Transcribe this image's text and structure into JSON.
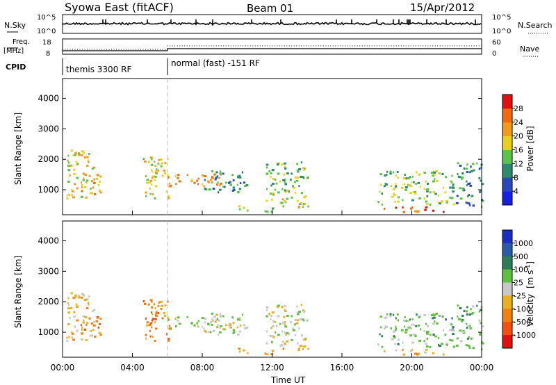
{
  "header": {
    "station": "Syowa East (fitACF)",
    "beam": "Beam 01",
    "date": "15/Apr/2012"
  },
  "panels": {
    "nsky": {
      "label": "N.Sky",
      "ticks_left": [
        "10^5",
        "10^0"
      ],
      "ticks_right": [
        "10^5",
        "10^0"
      ],
      "right_label": "N.Search"
    },
    "freq": {
      "label_line1": "Freq.",
      "label_line2": "[MHz]",
      "ticks_left": [
        "18",
        "8"
      ],
      "ticks_right": [
        "60",
        "0"
      ],
      "right_label": "Nave"
    },
    "cpid": {
      "label": "CPID",
      "segments": [
        {
          "start_hour": 0,
          "text": "themis 3300 RF"
        },
        {
          "start_hour": 6,
          "text": "normal (fast) -151 RF"
        }
      ]
    }
  },
  "x_axis": {
    "label": "Time UT",
    "ticks": [
      "00:00",
      "04:00",
      "08:00",
      "12:00",
      "16:00",
      "20:00",
      "00:00"
    ]
  },
  "y_axis": {
    "label": "Slant Range [km]",
    "ticks": [
      "1000",
      "2000",
      "3000",
      "4000"
    ]
  },
  "power_scale": {
    "label": "Power [dB]",
    "ticks": [
      "4",
      "8",
      "12",
      "16",
      "20",
      "24",
      "28"
    ],
    "colors": [
      "#1520e0",
      "#2a48b8",
      "#2e8a6a",
      "#5cc24a",
      "#e8d020",
      "#f09a20",
      "#f06a10",
      "#e01010"
    ]
  },
  "velocity_scale": {
    "label": "Velocity",
    "unit": "[m s",
    "unit_sup": "-1",
    "unit_close": "]",
    "ticks": [
      "1000",
      "500",
      "100",
      "25",
      "-25",
      "-100",
      "-500",
      "-1000"
    ],
    "colors": [
      "#1a2fc0",
      "#2a5aa8",
      "#2e7a5c",
      "#60c040",
      "#c8c8c8",
      "#e8b020",
      "#f08010",
      "#f05010",
      "#e01010"
    ]
  },
  "chart_data": {
    "type": "heatmap",
    "title": "Syowa East (fitACF)  Beam 01  15/Apr/2012",
    "xlabel": "Time UT",
    "ylabel": "Slant Range [km]",
    "x_range_hours": [
      0,
      24
    ],
    "ylim": [
      180,
      4650
    ],
    "panels": [
      "Power [dB]",
      "Velocity [m s-1]"
    ],
    "echo_regions": [
      {
        "t": [
          0.2,
          1.8
        ],
        "r": [
          700,
          2300
        ],
        "power_db": 14,
        "velocity": "-100"
      },
      {
        "t": [
          1.0,
          2.2
        ],
        "r": [
          800,
          1500
        ],
        "power_db": 20,
        "velocity": "-500"
      },
      {
        "t": [
          4.6,
          6.2
        ],
        "r": [
          700,
          2100
        ],
        "power_db": 16,
        "velocity": "-500"
      },
      {
        "t": [
          6.0,
          9.6
        ],
        "r": [
          1100,
          1500
        ],
        "power_db": 18,
        "velocity": "25"
      },
      {
        "t": [
          8.0,
          10.6
        ],
        "r": [
          900,
          1600
        ],
        "power_db": 8,
        "velocity": "25"
      },
      {
        "t": [
          11.6,
          14.0
        ],
        "r": [
          500,
          1900
        ],
        "power_db": 10,
        "velocity": "25"
      },
      {
        "t": [
          12.4,
          14.2
        ],
        "r": [
          400,
          750
        ],
        "power_db": 16,
        "velocity": "-100"
      },
      {
        "t": [
          10.0,
          12.0
        ],
        "r": [
          250,
          450
        ],
        "power_db": 12,
        "velocity": "-100"
      },
      {
        "t": [
          18.0,
          22.4
        ],
        "r": [
          500,
          1600
        ],
        "power_db": 10,
        "velocity": "100"
      },
      {
        "t": [
          18.2,
          21.8
        ],
        "r": [
          250,
          420
        ],
        "power_db": 22,
        "velocity": "-100"
      },
      {
        "t": [
          22.5,
          24.0
        ],
        "r": [
          400,
          1900
        ],
        "power_db": 8,
        "velocity": "100"
      }
    ]
  }
}
